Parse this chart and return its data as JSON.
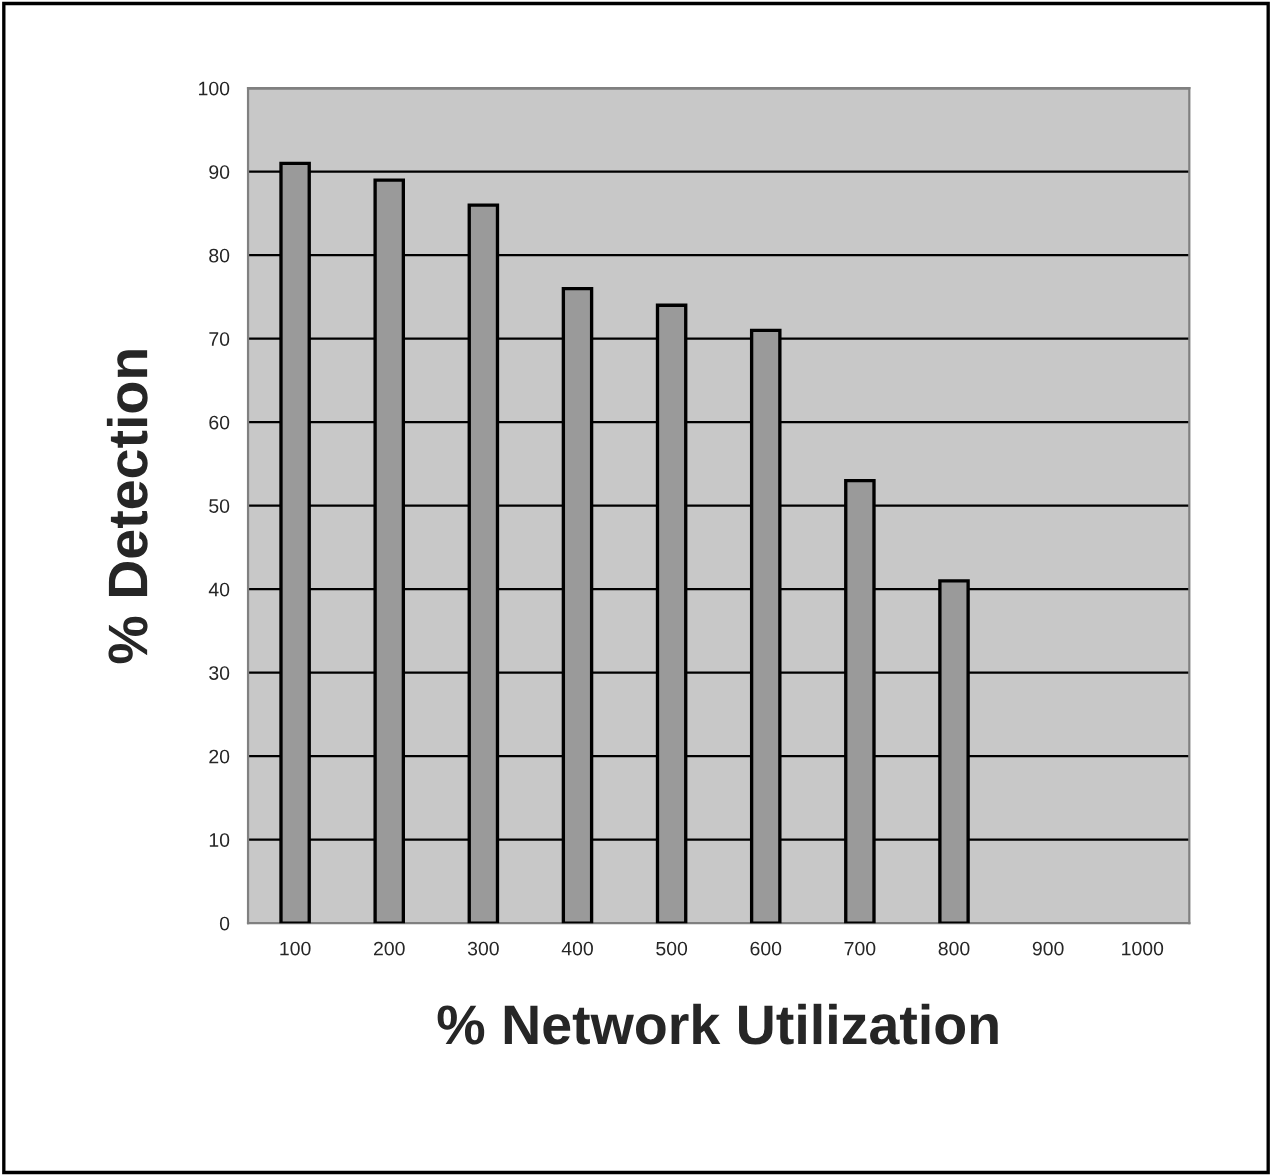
{
  "chart_data": {
    "type": "bar",
    "xlabel": "% Network Utilization",
    "ylabel": "% Detection",
    "categories": [
      "100",
      "200",
      "300",
      "400",
      "500",
      "600",
      "700",
      "800",
      "900",
      "1000"
    ],
    "values": [
      91,
      89,
      86,
      76,
      74,
      71,
      53,
      41,
      null,
      null
    ],
    "color": "#9a9a9a",
    "ylim": [
      0,
      100
    ],
    "yticks": [
      0,
      10,
      20,
      30,
      40,
      50,
      60,
      70,
      80,
      90,
      100
    ],
    "grid": "y"
  }
}
